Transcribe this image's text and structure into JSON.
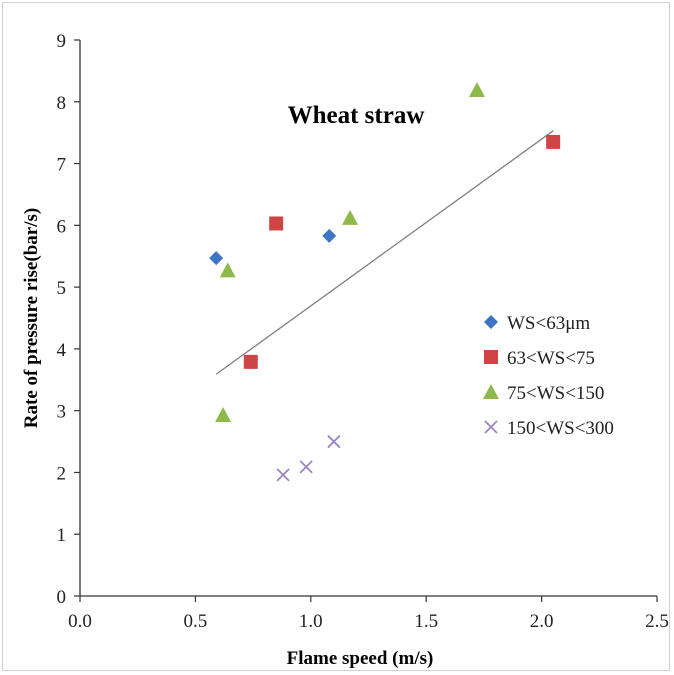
{
  "chart_data": {
    "type": "scatter",
    "title": "Wheat straw",
    "xlabel": "Flame speed (m/s)",
    "ylabel": "Rate of pressure rise(bar/s)",
    "xlim": [
      0,
      2.5
    ],
    "ylim": [
      0,
      9
    ],
    "x_ticks": [
      "0.0",
      "0.5",
      "1.0",
      "1.5",
      "2.0",
      "2.5"
    ],
    "y_ticks": [
      "0",
      "1",
      "2",
      "3",
      "4",
      "5",
      "6",
      "7",
      "8",
      "9"
    ],
    "grid": false,
    "legend_position": "right-middle",
    "series": [
      {
        "name": "WS<63μm",
        "marker": "diamond",
        "color": "#3f73c4",
        "points": [
          [
            0.59,
            5.47
          ],
          [
            1.08,
            5.83
          ]
        ]
      },
      {
        "name": "63<WS<75",
        "marker": "square",
        "color": "#cf4545",
        "points": [
          [
            0.85,
            6.03
          ],
          [
            0.74,
            3.79
          ],
          [
            2.05,
            7.35
          ]
        ]
      },
      {
        "name": "75<WS<150",
        "marker": "triangle",
        "color": "#8fba4a",
        "points": [
          [
            0.64,
            5.27
          ],
          [
            0.62,
            2.93
          ],
          [
            1.17,
            6.12
          ],
          [
            1.72,
            8.19
          ]
        ]
      },
      {
        "name": "150<WS<300",
        "marker": "x",
        "color": "#9b85c6",
        "points": [
          [
            0.88,
            1.96
          ],
          [
            0.98,
            2.09
          ],
          [
            1.1,
            2.5
          ]
        ]
      }
    ],
    "trendline": {
      "type": "linear",
      "color": "#808080",
      "from": [
        0.59,
        3.59
      ],
      "to": [
        2.05,
        7.53
      ]
    }
  }
}
